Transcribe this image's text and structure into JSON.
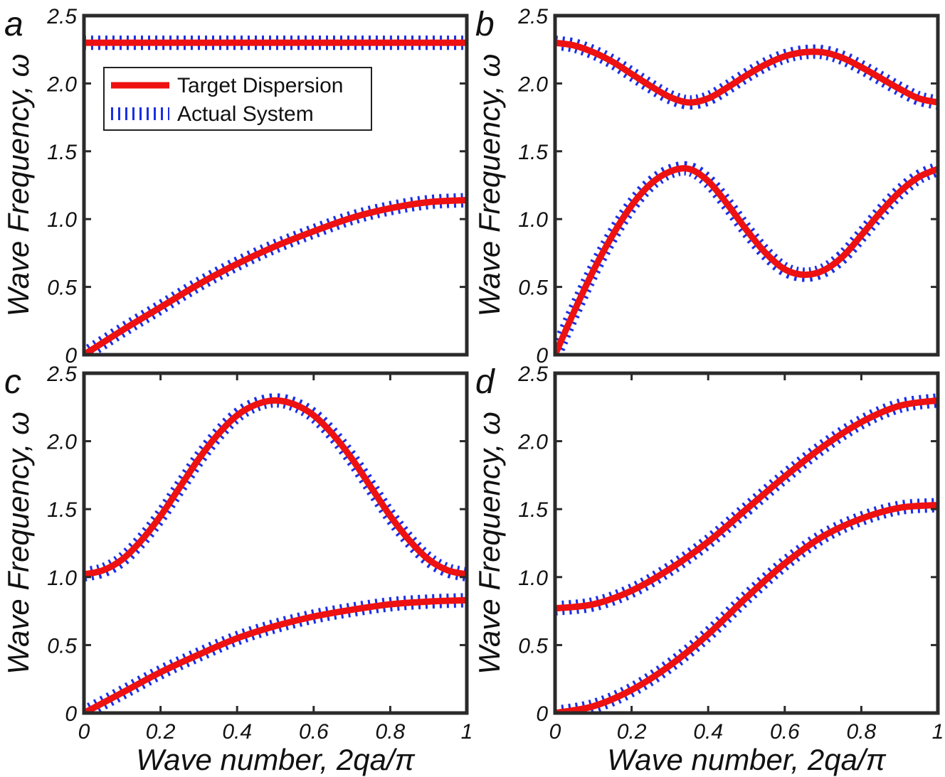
{
  "figure": {
    "legend": {
      "target_label": "Target Dispersion",
      "actual_label": "Actual System"
    },
    "colors": {
      "target": "#ee1111",
      "actual": "#1a2ee6",
      "axes": "#2a2a2a"
    }
  },
  "chart_data": [
    {
      "panel": "a",
      "type": "line",
      "ylabel": "Wave Frequency, ω",
      "xlabel": "",
      "xlim": [
        0,
        1
      ],
      "ylim": [
        0,
        2.5
      ],
      "yticks": [
        "0",
        "0.5",
        "1.0",
        "1.5",
        "2.0",
        "2.5"
      ],
      "xticks": [],
      "show_legend": true,
      "legend_position": "upper-left",
      "series": [
        {
          "name": "upper branch",
          "x": [
            0,
            0.25,
            0.5,
            0.75,
            1.0
          ],
          "y": [
            2.3,
            2.3,
            2.3,
            2.3,
            2.3
          ]
        },
        {
          "name": "lower branch",
          "x": [
            0,
            0.1,
            0.2,
            0.3,
            0.4,
            0.5,
            0.6,
            0.7,
            0.8,
            0.9,
            1.0
          ],
          "y": [
            0,
            0.18,
            0.35,
            0.52,
            0.67,
            0.8,
            0.91,
            1.01,
            1.08,
            1.125,
            1.14
          ]
        }
      ]
    },
    {
      "panel": "b",
      "type": "line",
      "ylabel": "Wave Frequency, ω",
      "xlabel": "",
      "xlim": [
        0,
        1
      ],
      "ylim": [
        0,
        2.5
      ],
      "yticks": [
        "0",
        "0.5",
        "1.0",
        "1.5",
        "2.0",
        "2.5"
      ],
      "xticks": [],
      "show_legend": false,
      "series": [
        {
          "name": "upper branch",
          "x": [
            0,
            0.05,
            0.1,
            0.15,
            0.2,
            0.25,
            0.3,
            0.35,
            0.4,
            0.45,
            0.5,
            0.55,
            0.6,
            0.65,
            0.7,
            0.75,
            0.8,
            0.85,
            0.9,
            0.95,
            1.0
          ],
          "y": [
            2.3,
            2.28,
            2.23,
            2.16,
            2.07,
            1.98,
            1.9,
            1.86,
            1.89,
            1.97,
            2.06,
            2.14,
            2.2,
            2.23,
            2.23,
            2.19,
            2.12,
            2.04,
            1.96,
            1.89,
            1.86
          ]
        },
        {
          "name": "lower branch",
          "x": [
            0,
            0.05,
            0.1,
            0.15,
            0.2,
            0.25,
            0.3,
            0.35,
            0.4,
            0.45,
            0.5,
            0.55,
            0.6,
            0.65,
            0.7,
            0.75,
            0.8,
            0.85,
            0.9,
            0.95,
            1.0
          ],
          "y": [
            0,
            0.32,
            0.62,
            0.88,
            1.1,
            1.26,
            1.35,
            1.37,
            1.28,
            1.11,
            0.92,
            0.75,
            0.63,
            0.59,
            0.62,
            0.72,
            0.88,
            1.05,
            1.2,
            1.31,
            1.37
          ]
        }
      ]
    },
    {
      "panel": "c",
      "type": "line",
      "ylabel": "Wave Frequency, ω",
      "xlabel": "Wave number, 2qa/π",
      "xlim": [
        0,
        1
      ],
      "ylim": [
        0,
        2.5
      ],
      "yticks": [
        "0",
        "0.5",
        "1.0",
        "1.5",
        "2.0",
        "2.5"
      ],
      "xticks": [
        "0",
        "0.2",
        "0.4",
        "0.6",
        "0.8",
        "1"
      ],
      "show_legend": false,
      "series": [
        {
          "name": "upper branch",
          "x": [
            0,
            0.05,
            0.1,
            0.15,
            0.2,
            0.25,
            0.3,
            0.35,
            0.4,
            0.45,
            0.5,
            0.55,
            0.6,
            0.65,
            0.7,
            0.75,
            0.8,
            0.85,
            0.9,
            0.95,
            1.0
          ],
          "y": [
            1.02,
            1.05,
            1.13,
            1.27,
            1.45,
            1.66,
            1.87,
            2.05,
            2.19,
            2.27,
            2.3,
            2.27,
            2.19,
            2.05,
            1.87,
            1.66,
            1.45,
            1.27,
            1.13,
            1.05,
            1.02
          ]
        },
        {
          "name": "lower branch",
          "x": [
            0,
            0.1,
            0.2,
            0.3,
            0.4,
            0.5,
            0.6,
            0.7,
            0.8,
            0.9,
            1.0
          ],
          "y": [
            0,
            0.15,
            0.3,
            0.43,
            0.55,
            0.64,
            0.71,
            0.76,
            0.8,
            0.82,
            0.83
          ]
        }
      ]
    },
    {
      "panel": "d",
      "type": "line",
      "ylabel": "Wave Frequency, ω",
      "xlabel": "Wave number, 2qa/π",
      "xlim": [
        0,
        1
      ],
      "ylim": [
        0,
        2.5
      ],
      "yticks": [
        "0",
        "0.5",
        "1.0",
        "1.5",
        "2.0",
        "2.5"
      ],
      "xticks": [
        "0",
        "0.2",
        "0.4",
        "0.6",
        "0.8",
        "1"
      ],
      "show_legend": false,
      "series": [
        {
          "name": "upper branch",
          "x": [
            0,
            0.1,
            0.2,
            0.3,
            0.4,
            0.5,
            0.6,
            0.7,
            0.8,
            0.9,
            1.0
          ],
          "y": [
            0.77,
            0.8,
            0.9,
            1.06,
            1.26,
            1.5,
            1.74,
            1.96,
            2.14,
            2.26,
            2.3
          ]
        },
        {
          "name": "lower branch",
          "x": [
            0,
            0.1,
            0.2,
            0.3,
            0.4,
            0.5,
            0.6,
            0.7,
            0.8,
            0.9,
            1.0
          ],
          "y": [
            0,
            0.05,
            0.17,
            0.35,
            0.58,
            0.85,
            1.1,
            1.3,
            1.43,
            1.51,
            1.53
          ]
        }
      ]
    }
  ]
}
